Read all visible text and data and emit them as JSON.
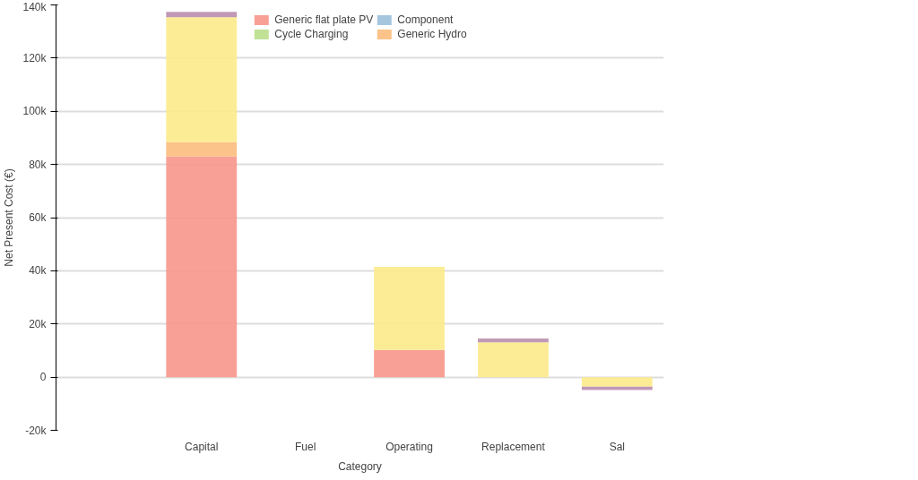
{
  "chart_data": {
    "type": "bar",
    "stacked": true,
    "xlabel": "Category",
    "ylabel": "Net Present Cost (€)",
    "categories": [
      null,
      "Capital",
      "Fuel",
      "Operating",
      "Replacement",
      "Sal"
    ],
    "series": [
      {
        "name": "Generic flat plate PV",
        "color": "#f7968a",
        "values": [
          0,
          83000,
          0,
          10200,
          0,
          0
        ]
      },
      {
        "name": "Component",
        "color": "#9cc0db",
        "values": [
          0,
          0,
          0,
          0,
          0,
          0
        ]
      },
      {
        "name": "Cycle Charging",
        "color": "#bade8c",
        "values": [
          0,
          0,
          0,
          0,
          0,
          0
        ]
      },
      {
        "name": "Generic Hydro",
        "color": "#fbbd7c",
        "values": [
          0,
          5400,
          0,
          0,
          0,
          0
        ]
      },
      {
        "color": "#fcea8a",
        "values": [
          0,
          47000,
          0,
          31300,
          13100,
          -3600
        ]
      },
      {
        "color": "#b98eae",
        "values": [
          0,
          2000,
          0,
          0,
          1400,
          -1200
        ]
      }
    ],
    "ylim": [
      -20000,
      140000
    ],
    "yticks": [
      {
        "value": -20000,
        "label": "-20k"
      },
      {
        "value": 0,
        "label": "0"
      },
      {
        "value": 20000,
        "label": "20k"
      },
      {
        "value": 40000,
        "label": "40k"
      },
      {
        "value": 60000,
        "label": "60k"
      },
      {
        "value": 80000,
        "label": "80k"
      },
      {
        "value": 100000,
        "label": "100k"
      },
      {
        "value": 120000,
        "label": "120k"
      },
      {
        "value": 140000,
        "label": "140k"
      }
    ],
    "grid": "y",
    "legend": "top"
  }
}
